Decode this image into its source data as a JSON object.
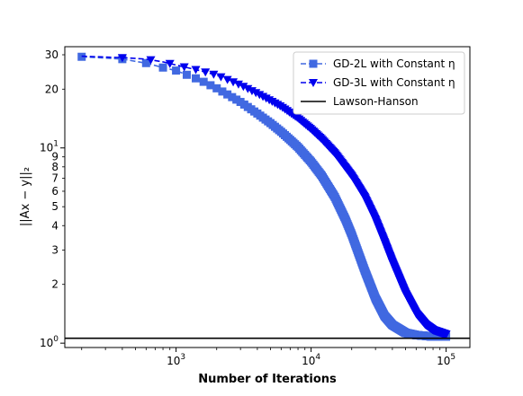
{
  "chart_data": {
    "type": "line",
    "xlabel": "Number of Iterations",
    "ylabel": "||Ax − y||₂",
    "x_scale": "log",
    "y_scale": "log",
    "xlim": [
      150,
      150000
    ],
    "ylim": [
      0.95,
      33
    ],
    "grid": false,
    "legend_position": "top-right",
    "x_ticks": [
      {
        "value": 1000,
        "base": "10",
        "exp": "3"
      },
      {
        "value": 10000,
        "base": "10",
        "exp": "4"
      },
      {
        "value": 100000,
        "base": "10",
        "exp": "5"
      }
    ],
    "y_ticks": [
      {
        "value": 1,
        "base": "10",
        "exp": "0"
      },
      {
        "value": 2,
        "label": "2"
      },
      {
        "value": 3,
        "label": "3"
      },
      {
        "value": 4,
        "label": "4"
      },
      {
        "value": 5,
        "label": "5"
      },
      {
        "value": 6,
        "label": "6"
      },
      {
        "value": 7,
        "label": "7"
      },
      {
        "value": 8,
        "label": "8"
      },
      {
        "value": 9,
        "label": "9"
      },
      {
        "value": 10,
        "base": "10",
        "exp": "1"
      },
      {
        "value": 20,
        "label": "20"
      },
      {
        "value": 30,
        "label": "30"
      }
    ],
    "series": [
      {
        "name": "GD-2L with Constant η",
        "color": "#4169e1",
        "linestyle": "dashed",
        "marker": "square",
        "x": [
          200,
          400,
          600,
          800,
          1000,
          1500,
          2000,
          3000,
          4000,
          5000,
          6000,
          7000,
          8000,
          10000,
          12000,
          15000,
          18000,
          20000,
          22000,
          25000,
          30000,
          35000,
          40000,
          50000,
          60000,
          70000,
          80000,
          100000
        ],
        "y": [
          29.3,
          28.5,
          27.2,
          25.8,
          24.9,
          22.3,
          20.2,
          17.2,
          15.0,
          13.4,
          12.1,
          11.0,
          10.1,
          8.5,
          7.2,
          5.6,
          4.3,
          3.6,
          3.0,
          2.35,
          1.7,
          1.38,
          1.24,
          1.13,
          1.1,
          1.09,
          1.08,
          1.08
        ]
      },
      {
        "name": "GD-3L with Constant η",
        "color": "#0000ee",
        "linestyle": "dashed",
        "marker": "triangle-down",
        "x": [
          200,
          400,
          600,
          800,
          1000,
          1500,
          2000,
          3000,
          4000,
          5000,
          6000,
          8000,
          10000,
          12000,
          15000,
          20000,
          25000,
          30000,
          35000,
          40000,
          50000,
          60000,
          70000,
          80000,
          100000
        ],
        "y": [
          29.5,
          29.0,
          28.5,
          27.6,
          26.6,
          24.9,
          23.6,
          21.0,
          19.0,
          17.5,
          16.3,
          14.2,
          12.5,
          11.1,
          9.4,
          7.2,
          5.6,
          4.3,
          3.3,
          2.6,
          1.8,
          1.42,
          1.25,
          1.17,
          1.11
        ]
      },
      {
        "name": "Lawson-Hanson",
        "color": "#000000",
        "linestyle": "solid",
        "marker": "none",
        "y_const": 1.06
      }
    ]
  }
}
